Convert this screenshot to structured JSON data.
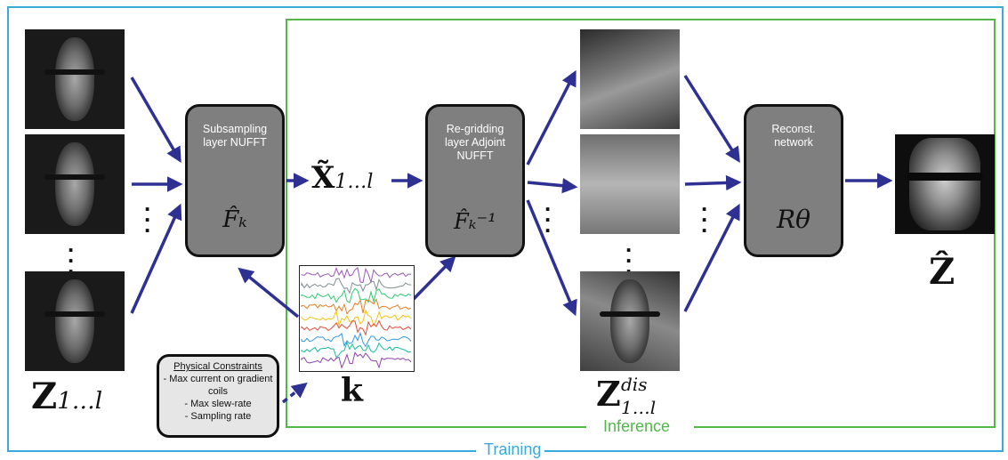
{
  "blocks": {
    "subsampling": {
      "label": "Subsampling layer NUFFT",
      "operator": "F̂ₖ"
    },
    "regridding": {
      "label": "Re-gridding layer Adjoint NUFFT",
      "operator": "F̂ₖ⁻¹"
    },
    "reconst": {
      "label": "Reconst. network",
      "operator": "Rθ"
    }
  },
  "symbols": {
    "x_tilde": "X̃",
    "x_sub": "1…l",
    "z_base": "Z",
    "z_sub": "1…l",
    "z_dis_sup": "dis",
    "z_dis_sub": "1…l",
    "z_hat": "Ẑ",
    "k": "k"
  },
  "constraints": {
    "title": "Physical Constraints",
    "items": [
      "- Max current on gradient coils",
      "- Max slew-rate",
      "- Sampling rate"
    ]
  },
  "regions": {
    "training": "Training",
    "inference": "Inference"
  },
  "colors": {
    "training": "#3aaadc",
    "inference": "#4fb848",
    "arrow": "#2e3192",
    "box": "#7f7f7f"
  },
  "kspace_colors": [
    "#9b59b6",
    "#7f8c8d",
    "#2ecc71",
    "#e67e22",
    "#f1c40f",
    "#e74c3c",
    "#3498db",
    "#1abc9c",
    "#8e44ad"
  ]
}
